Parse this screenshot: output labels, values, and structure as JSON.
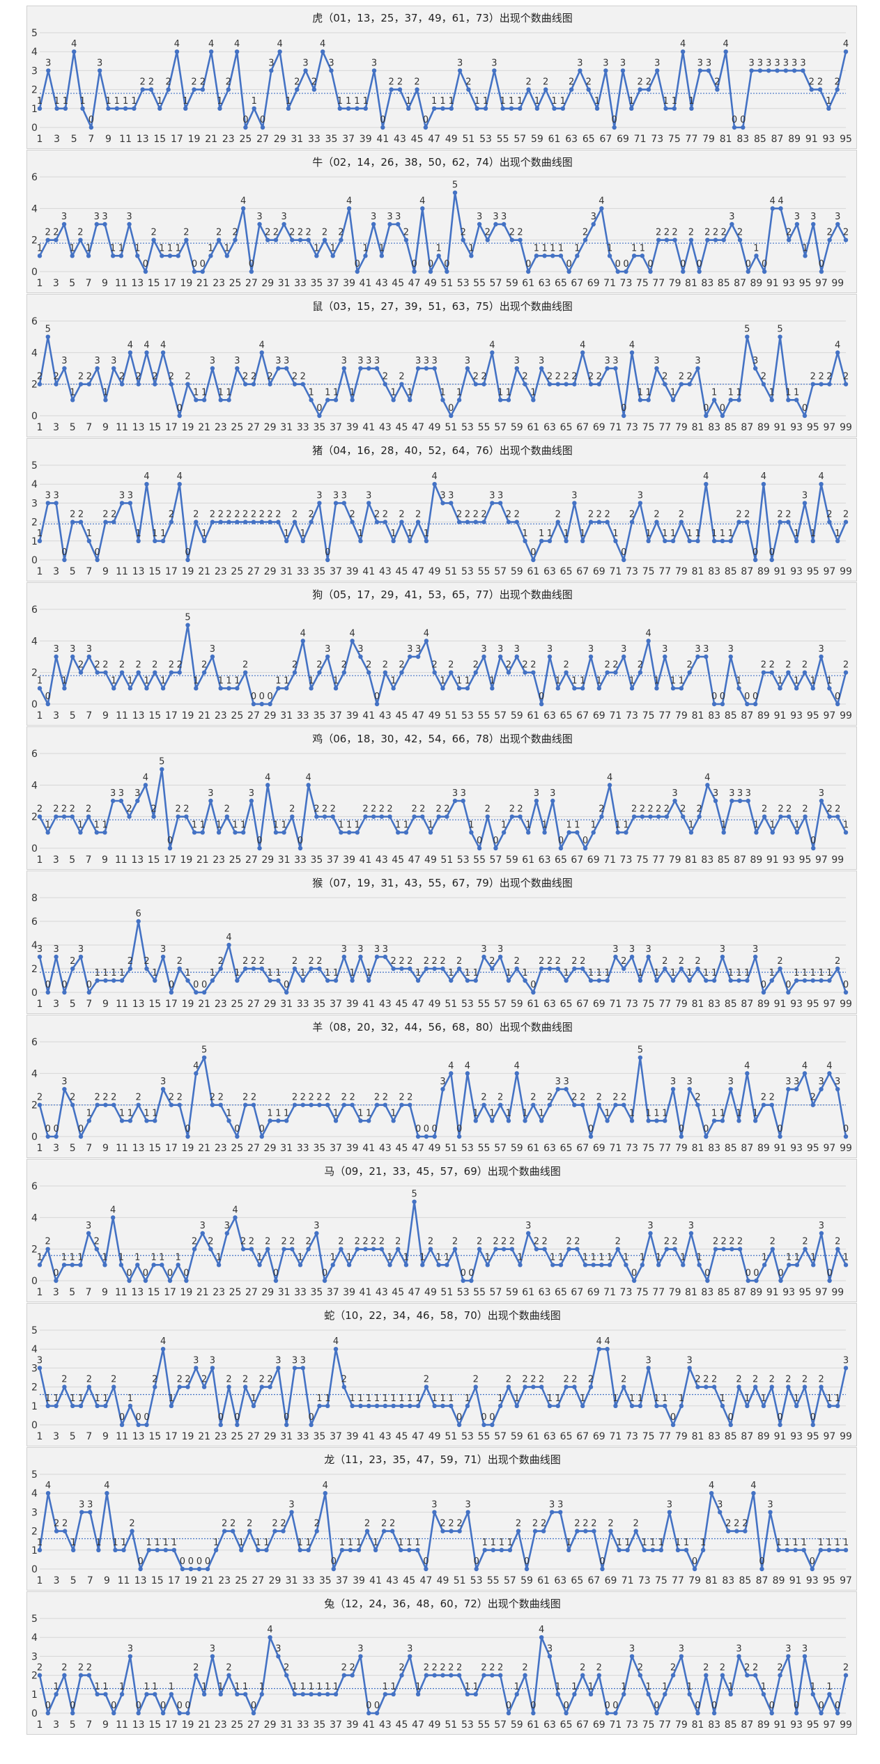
{
  "chart_data": [
    {
      "type": "line",
      "title": "虎（01，13，25，37，49，61，73）出现个数曲线图",
      "ylim": [
        0,
        5
      ],
      "yticks": [
        0,
        1,
        2,
        3,
        4,
        5
      ],
      "average": 1.8,
      "xtick_start": 1,
      "xtick_step": 2,
      "values": [
        1,
        3,
        1,
        1,
        4,
        1,
        0,
        3,
        1,
        1,
        1,
        1,
        2,
        2,
        1,
        2,
        4,
        1,
        2,
        2,
        4,
        1,
        2,
        4,
        0,
        1,
        0,
        3,
        4,
        1,
        2,
        3,
        2,
        4,
        3,
        1,
        1,
        1,
        1,
        3,
        0,
        2,
        2,
        1,
        2,
        0,
        1,
        1,
        1,
        3,
        2,
        1,
        1,
        3,
        1,
        1,
        1,
        2,
        1,
        2,
        1,
        1,
        2,
        3,
        2,
        1,
        3,
        0,
        3,
        1,
        2,
        2,
        3,
        1,
        1,
        4,
        1,
        3,
        3,
        2,
        4,
        0,
        0,
        3,
        3,
        3,
        3,
        3,
        3,
        3,
        2,
        2,
        1,
        2,
        4
      ]
    },
    {
      "type": "line",
      "title": "牛（02，14，26，38，50，62，74）出现个数曲线图",
      "ylim": [
        0,
        6
      ],
      "yticks": [
        0,
        2,
        4,
        6
      ],
      "average": 1.8,
      "xtick_start": 1,
      "xtick_step": 2,
      "values": [
        1,
        2,
        2,
        3,
        1,
        2,
        1,
        3,
        3,
        1,
        1,
        3,
        1,
        0,
        2,
        1,
        1,
        1,
        2,
        0,
        0,
        1,
        2,
        1,
        2,
        4,
        0,
        3,
        2,
        2,
        3,
        2,
        2,
        2,
        1,
        2,
        1,
        2,
        4,
        0,
        1,
        3,
        1,
        3,
        3,
        2,
        0,
        4,
        0,
        1,
        0,
        5,
        2,
        1,
        3,
        2,
        3,
        3,
        2,
        2,
        0,
        1,
        1,
        1,
        1,
        0,
        1,
        2,
        3,
        4,
        1,
        0,
        0,
        1,
        1,
        0,
        2,
        2,
        2,
        0,
        2,
        0,
        2,
        2,
        2,
        3,
        2,
        0,
        1,
        0,
        4,
        4,
        2,
        3,
        1,
        3,
        0,
        2,
        3,
        2
      ]
    },
    {
      "type": "line",
      "title": "鼠（03，15，27，39，51，63，75）出现个数曲线图",
      "ylim": [
        0,
        6
      ],
      "yticks": [
        0,
        2,
        4,
        6
      ],
      "average": 2.0,
      "xtick_start": 1,
      "xtick_step": 2,
      "values": [
        2,
        5,
        2,
        3,
        1,
        2,
        2,
        3,
        1,
        3,
        2,
        4,
        2,
        4,
        2,
        4,
        2,
        0,
        2,
        1,
        1,
        3,
        1,
        1,
        3,
        2,
        2,
        4,
        2,
        3,
        3,
        2,
        2,
        1,
        0,
        1,
        1,
        3,
        1,
        3,
        3,
        3,
        2,
        1,
        2,
        1,
        3,
        3,
        3,
        1,
        0,
        1,
        3,
        2,
        2,
        4,
        1,
        1,
        3,
        2,
        1,
        3,
        2,
        2,
        2,
        2,
        4,
        2,
        2,
        3,
        3,
        0,
        4,
        1,
        1,
        3,
        2,
        1,
        2,
        2,
        3,
        0,
        1,
        0,
        1,
        1,
        5,
        3,
        2,
        1,
        5,
        1,
        1,
        0,
        2,
        2,
        2,
        4,
        2
      ]
    },
    {
      "type": "line",
      "title": "猪（04，16，28，40，52，64，76）出现个数曲线图",
      "ylim": [
        0,
        5
      ],
      "yticks": [
        0,
        1,
        2,
        3,
        4,
        5
      ],
      "average": 1.9,
      "xtick_start": 1,
      "xtick_step": 2,
      "values": [
        1,
        3,
        3,
        0,
        2,
        2,
        1,
        0,
        2,
        2,
        3,
        3,
        1,
        4,
        1,
        1,
        2,
        4,
        0,
        2,
        1,
        2,
        2,
        2,
        2,
        2,
        2,
        2,
        2,
        2,
        1,
        2,
        1,
        2,
        3,
        0,
        3,
        3,
        2,
        1,
        3,
        2,
        2,
        1,
        2,
        1,
        2,
        1,
        4,
        3,
        3,
        2,
        2,
        2,
        2,
        3,
        3,
        2,
        2,
        1,
        0,
        1,
        1,
        2,
        1,
        3,
        1,
        2,
        2,
        2,
        1,
        0,
        2,
        3,
        1,
        2,
        1,
        1,
        2,
        1,
        1,
        4,
        1,
        1,
        1,
        2,
        2,
        0,
        4,
        0,
        2,
        2,
        1,
        3,
        1,
        4,
        2,
        1,
        2
      ]
    },
    {
      "type": "line",
      "title": "狗（05，17，29，41，53，65，77）出现个数曲线图",
      "ylim": [
        0,
        6
      ],
      "yticks": [
        0,
        2,
        4,
        6
      ],
      "average": 1.8,
      "xtick_start": 1,
      "xtick_step": 2,
      "values": [
        1,
        0,
        3,
        1,
        3,
        2,
        3,
        2,
        2,
        1,
        2,
        1,
        2,
        1,
        2,
        1,
        2,
        2,
        5,
        1,
        2,
        3,
        1,
        1,
        1,
        2,
        0,
        0,
        0,
        1,
        1,
        2,
        4,
        1,
        2,
        3,
        1,
        2,
        4,
        3,
        2,
        0,
        2,
        1,
        2,
        3,
        3,
        4,
        2,
        1,
        2,
        1,
        1,
        2,
        3,
        1,
        3,
        2,
        3,
        2,
        2,
        0,
        3,
        1,
        2,
        1,
        1,
        3,
        1,
        2,
        2,
        3,
        1,
        2,
        4,
        1,
        3,
        1,
        1,
        2,
        3,
        3,
        0,
        0,
        3,
        1,
        0,
        0,
        2,
        2,
        1,
        2,
        1,
        2,
        1,
        3,
        1,
        0,
        2
      ]
    },
    {
      "type": "line",
      "title": "鸡（06，18，30，42，54，66，78）出现个数曲线图",
      "ylim": [
        0,
        6
      ],
      "yticks": [
        0,
        2,
        4,
        6
      ],
      "average": 1.8,
      "xtick_start": 1,
      "xtick_step": 2,
      "values": [
        2,
        1,
        2,
        2,
        2,
        1,
        2,
        1,
        1,
        3,
        3,
        2,
        3,
        4,
        2,
        5,
        0,
        2,
        2,
        1,
        1,
        3,
        1,
        2,
        1,
        1,
        3,
        0,
        4,
        1,
        1,
        2,
        0,
        4,
        2,
        2,
        2,
        1,
        1,
        1,
        2,
        2,
        2,
        2,
        1,
        1,
        2,
        2,
        1,
        2,
        2,
        3,
        3,
        1,
        0,
        2,
        0,
        1,
        2,
        2,
        1,
        3,
        1,
        3,
        0,
        1,
        1,
        0,
        1,
        2,
        4,
        1,
        1,
        2,
        2,
        2,
        2,
        2,
        3,
        2,
        1,
        2,
        4,
        3,
        1,
        3,
        3,
        3,
        1,
        2,
        1,
        2,
        2,
        1,
        2,
        0,
        3,
        2,
        2,
        1
      ]
    },
    {
      "type": "line",
      "title": "猴（07，19，31，43，55，67，79）出现个数曲线图",
      "ylim": [
        0,
        8
      ],
      "yticks": [
        0,
        2,
        4,
        6,
        8
      ],
      "average": 1.7,
      "xtick_start": 1,
      "xtick_step": 2,
      "values": [
        3,
        0,
        3,
        0,
        2,
        3,
        0,
        1,
        1,
        1,
        1,
        2,
        6,
        2,
        1,
        3,
        0,
        2,
        1,
        0,
        0,
        1,
        2,
        4,
        1,
        2,
        2,
        2,
        1,
        1,
        0,
        2,
        1,
        2,
        2,
        1,
        1,
        3,
        1,
        3,
        1,
        3,
        3,
        2,
        2,
        2,
        1,
        2,
        2,
        2,
        1,
        2,
        1,
        1,
        3,
        2,
        3,
        1,
        2,
        1,
        0,
        2,
        2,
        2,
        1,
        2,
        2,
        1,
        1,
        1,
        3,
        2,
        3,
        1,
        3,
        1,
        2,
        1,
        2,
        1,
        2,
        1,
        1,
        3,
        1,
        1,
        1,
        3,
        0,
        1,
        2,
        0,
        1,
        1,
        1,
        1,
        1,
        2,
        0
      ]
    },
    {
      "type": "line",
      "title": "羊（08，20，32，44，56，68，80）出现个数曲线图",
      "ylim": [
        0,
        6
      ],
      "yticks": [
        0,
        2,
        4,
        6
      ],
      "average": 2.0,
      "xtick_start": 1,
      "xtick_step": 2,
      "values": [
        2,
        0,
        0,
        3,
        2,
        0,
        1,
        2,
        2,
        2,
        1,
        1,
        2,
        1,
        1,
        3,
        2,
        2,
        0,
        4,
        5,
        2,
        2,
        1,
        0,
        2,
        2,
        0,
        1,
        1,
        1,
        2,
        2,
        2,
        2,
        2,
        1,
        2,
        2,
        1,
        1,
        2,
        2,
        1,
        2,
        2,
        0,
        0,
        0,
        3,
        4,
        0,
        4,
        1,
        2,
        1,
        2,
        1,
        4,
        1,
        2,
        1,
        2,
        3,
        3,
        2,
        2,
        0,
        2,
        1,
        2,
        2,
        1,
        5,
        1,
        1,
        1,
        3,
        0,
        3,
        2,
        0,
        1,
        1,
        3,
        1,
        4,
        1,
        2,
        2,
        0,
        3,
        3,
        4,
        2,
        3,
        4,
        3,
        0
      ]
    },
    {
      "type": "line",
      "title": "马（09，21，33，45，57，69）出现个数曲线图",
      "ylim": [
        0,
        6
      ],
      "yticks": [
        0,
        2,
        4,
        6
      ],
      "average": 1.6,
      "xtick_start": 1,
      "xtick_step": 2,
      "values": [
        1,
        2,
        0,
        1,
        1,
        1,
        3,
        2,
        1,
        4,
        1,
        0,
        1,
        0,
        1,
        1,
        0,
        1,
        0,
        2,
        3,
        2,
        1,
        3,
        4,
        2,
        2,
        1,
        2,
        0,
        2,
        2,
        1,
        2,
        3,
        0,
        1,
        2,
        1,
        2,
        2,
        2,
        2,
        1,
        2,
        1,
        5,
        1,
        2,
        1,
        1,
        2,
        0,
        0,
        2,
        1,
        2,
        2,
        2,
        1,
        3,
        2,
        2,
        1,
        1,
        2,
        2,
        1,
        1,
        1,
        1,
        2,
        1,
        0,
        1,
        3,
        1,
        2,
        2,
        1,
        3,
        1,
        0,
        2,
        2,
        2,
        2,
        0,
        0,
        1,
        2,
        0,
        1,
        1,
        2,
        1,
        3,
        0,
        2,
        1
      ]
    },
    {
      "type": "line",
      "title": "蛇（10，22，34，46，58，70）出现个数曲线图",
      "ylim": [
        0,
        5
      ],
      "yticks": [
        0,
        1,
        2,
        3,
        4,
        5
      ],
      "average": 1.6,
      "xtick_start": 1,
      "xtick_step": 2,
      "values": [
        3,
        1,
        1,
        2,
        1,
        1,
        2,
        1,
        1,
        2,
        0,
        1,
        0,
        0,
        2,
        4,
        1,
        2,
        2,
        3,
        2,
        3,
        0,
        2,
        0,
        2,
        1,
        2,
        2,
        3,
        0,
        3,
        3,
        0,
        1,
        1,
        4,
        2,
        1,
        1,
        1,
        1,
        1,
        1,
        1,
        1,
        1,
        2,
        1,
        1,
        1,
        0,
        1,
        2,
        0,
        0,
        1,
        2,
        1,
        2,
        2,
        2,
        1,
        1,
        2,
        2,
        1,
        2,
        4,
        4,
        1,
        2,
        1,
        1,
        3,
        1,
        1,
        0,
        1,
        3,
        2,
        2,
        2,
        1,
        0,
        2,
        1,
        2,
        1,
        2,
        0,
        2,
        1,
        2,
        0,
        2,
        1,
        1,
        3
      ]
    },
    {
      "type": "line",
      "title": "龙（11，23，35，47，59，71）出现个数曲线图",
      "ylim": [
        0,
        5
      ],
      "yticks": [
        0,
        1,
        2,
        3,
        4,
        5
      ],
      "average": 1.6,
      "xtick_start": 1,
      "xtick_step": 2,
      "values": [
        1,
        4,
        2,
        2,
        1,
        3,
        3,
        1,
        4,
        1,
        1,
        2,
        0,
        1,
        1,
        1,
        1,
        0,
        0,
        0,
        0,
        1,
        2,
        2,
        1,
        2,
        1,
        1,
        2,
        2,
        3,
        1,
        1,
        2,
        4,
        0,
        1,
        1,
        1,
        2,
        1,
        2,
        2,
        1,
        1,
        1,
        0,
        3,
        2,
        2,
        2,
        3,
        0,
        1,
        1,
        1,
        1,
        2,
        0,
        2,
        2,
        3,
        3,
        1,
        2,
        2,
        2,
        0,
        2,
        1,
        1,
        2,
        1,
        1,
        1,
        3,
        1,
        1,
        0,
        1,
        4,
        3,
        2,
        2,
        2,
        4,
        0,
        3,
        1,
        1,
        1,
        1,
        0,
        1,
        1,
        1,
        1
      ]
    },
    {
      "type": "line",
      "title": "兔（12，24，36，48，60，72）出现个数曲线图",
      "ylim": [
        0,
        5
      ],
      "yticks": [
        0,
        1,
        2,
        3,
        4,
        5
      ],
      "average": 1.3,
      "xtick_start": 1,
      "xtick_step": 2,
      "values": [
        2,
        0,
        1,
        2,
        0,
        2,
        2,
        1,
        1,
        0,
        1,
        3,
        0,
        1,
        1,
        0,
        1,
        0,
        0,
        2,
        1,
        3,
        1,
        2,
        1,
        1,
        0,
        1,
        4,
        3,
        2,
        1,
        1,
        1,
        1,
        1,
        1,
        2,
        2,
        3,
        0,
        0,
        1,
        1,
        2,
        3,
        1,
        2,
        2,
        2,
        2,
        2,
        1,
        1,
        2,
        2,
        2,
        0,
        1,
        2,
        0,
        4,
        3,
        1,
        0,
        1,
        2,
        1,
        2,
        0,
        0,
        1,
        3,
        2,
        1,
        0,
        1,
        2,
        3,
        1,
        0,
        2,
        0,
        2,
        1,
        3,
        2,
        2,
        1,
        0,
        2,
        3,
        0,
        3,
        1,
        0,
        1,
        0,
        2
      ]
    }
  ]
}
